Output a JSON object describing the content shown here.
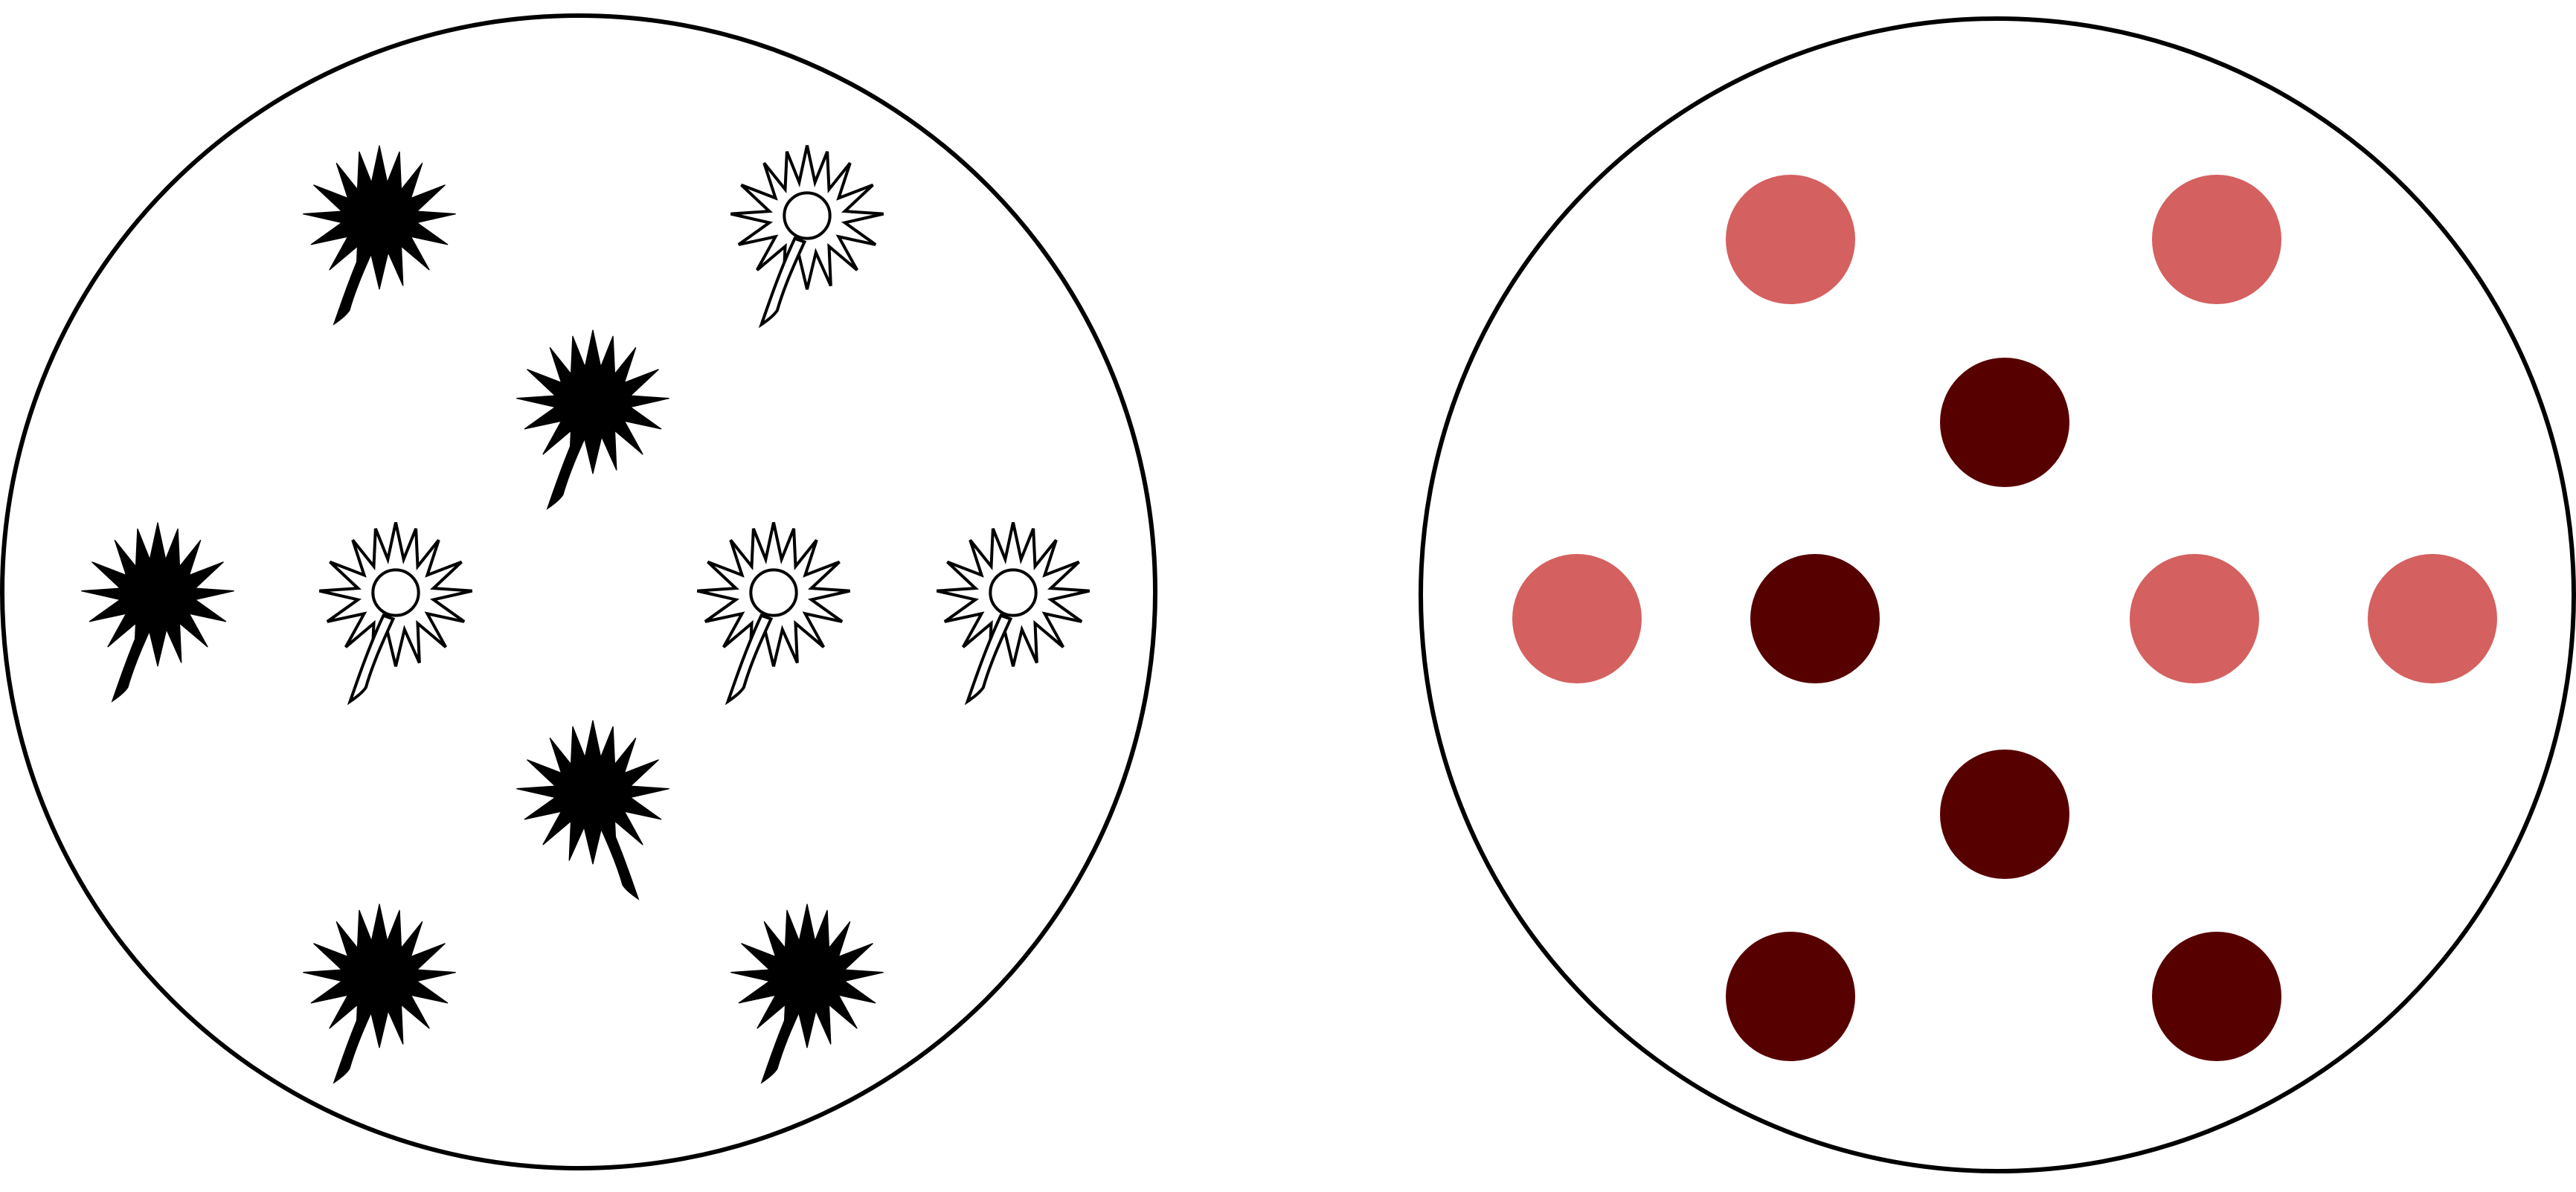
{
  "figure": {
    "panels": [
      {
        "name": "flower-panel",
        "items": [
          {
            "kind": "flower",
            "state": "filled"
          },
          {
            "kind": "flower",
            "state": "outline"
          },
          {
            "kind": "flower",
            "state": "filled"
          },
          {
            "kind": "flower",
            "state": "filled"
          },
          {
            "kind": "flower",
            "state": "outline"
          },
          {
            "kind": "flower",
            "state": "outline"
          },
          {
            "kind": "flower",
            "state": "outline"
          },
          {
            "kind": "flower",
            "state": "filled",
            "flipped": true
          },
          {
            "kind": "flower",
            "state": "filled"
          },
          {
            "kind": "flower",
            "state": "filled"
          }
        ]
      },
      {
        "name": "dot-panel",
        "items": [
          {
            "kind": "dot",
            "state": "light"
          },
          {
            "kind": "dot",
            "state": "light"
          },
          {
            "kind": "dot",
            "state": "dark"
          },
          {
            "kind": "dot",
            "state": "light"
          },
          {
            "kind": "dot",
            "state": "dark"
          },
          {
            "kind": "dot",
            "state": "light"
          },
          {
            "kind": "dot",
            "state": "light"
          },
          {
            "kind": "dot",
            "state": "dark"
          },
          {
            "kind": "dot",
            "state": "dark"
          },
          {
            "kind": "dot",
            "state": "dark"
          }
        ]
      }
    ]
  },
  "colors": {
    "outline": "#000000",
    "flower_filled": "#000000",
    "flower_outline_fill": "#ffffff",
    "dot_light": "#d46060",
    "dot_dark": "#570000"
  }
}
